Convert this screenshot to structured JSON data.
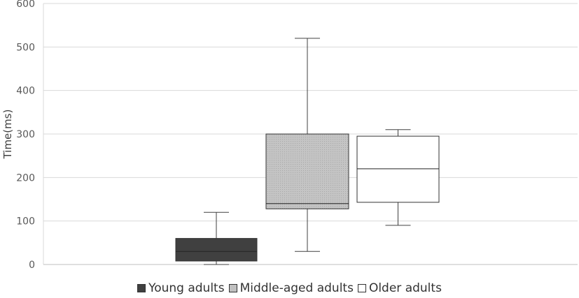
{
  "chart_data": {
    "type": "boxplot",
    "ylabel": "Time(ms)",
    "ylim": [
      0,
      600
    ],
    "yticks": [
      0,
      100,
      200,
      300,
      400,
      500,
      600
    ],
    "grid": true,
    "legend_position": "bottom",
    "series": [
      {
        "name": "Young adults",
        "color": "#404040",
        "min": 0,
        "q1": 8,
        "median": 30,
        "q3": 60,
        "max": 120
      },
      {
        "name": "Middle-aged adults",
        "color": "#c0c0c0",
        "min": 30,
        "q1": 128,
        "median": 140,
        "q3": 300,
        "max": 520
      },
      {
        "name": "Older adults",
        "color": "#ffffff",
        "min": 90,
        "q1": 143,
        "median": 220,
        "q3": 295,
        "max": 310
      }
    ]
  }
}
